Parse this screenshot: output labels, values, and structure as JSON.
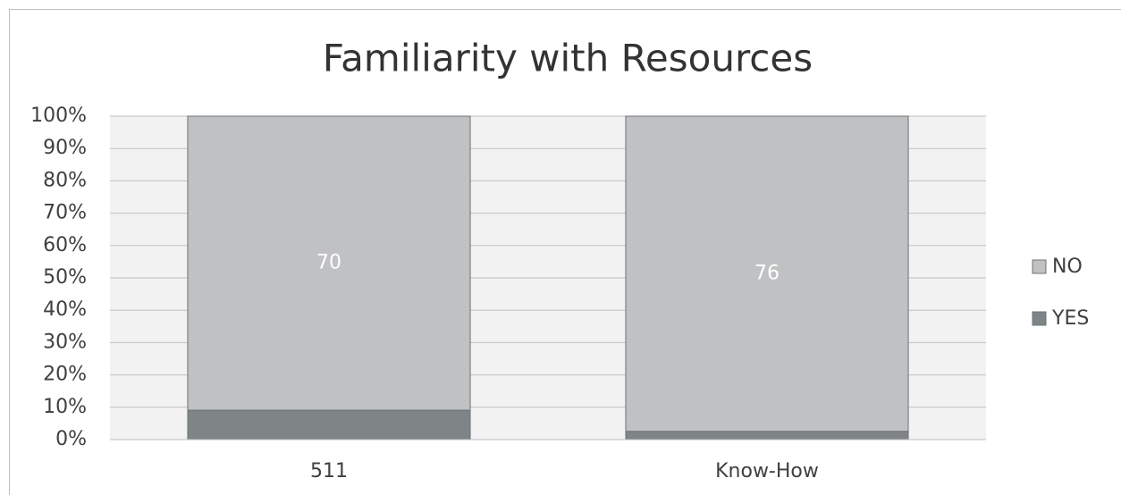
{
  "chart_data": {
    "type": "bar",
    "stacking": "percent",
    "title": "Familiarity with Resources",
    "categories": [
      "511",
      "Know-How"
    ],
    "series": [
      {
        "name": "YES",
        "color": "#7f8487",
        "values": [
          7,
          2
        ]
      },
      {
        "name": "NO",
        "color": "#c0c1c3",
        "values": [
          70,
          76
        ]
      }
    ],
    "ylim": [
      0,
      100
    ],
    "yticks": [
      {
        "value": 0,
        "label": "0%"
      },
      {
        "value": 10,
        "label": "10%"
      },
      {
        "value": 20,
        "label": "20%"
      },
      {
        "value": 30,
        "label": "30%"
      },
      {
        "value": 40,
        "label": "40%"
      },
      {
        "value": 50,
        "label": "50%"
      },
      {
        "value": 60,
        "label": "60%"
      },
      {
        "value": 70,
        "label": "70%"
      },
      {
        "value": 80,
        "label": "80%"
      },
      {
        "value": 90,
        "label": "90%"
      },
      {
        "value": 100,
        "label": "100%"
      }
    ],
    "grid": true,
    "legend": "right"
  }
}
